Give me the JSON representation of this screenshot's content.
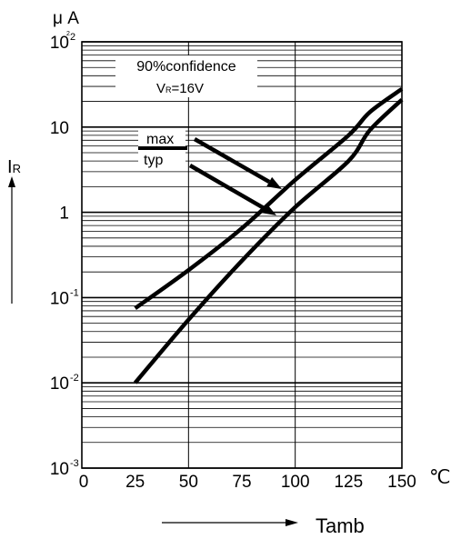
{
  "chart_data": {
    "type": "line",
    "title": "",
    "ylabel_unit": "μ A",
    "ylabel": "IR",
    "xlabel": "Tamb",
    "x_unit": "℃",
    "y_scale": "log",
    "xlim": [
      0,
      150
    ],
    "ylim": [
      0.001,
      100
    ],
    "x_ticks": [
      "0",
      "25",
      "50",
      "75",
      "100",
      "125",
      "150"
    ],
    "y_ticks": [
      {
        "value": 100,
        "base": "10",
        "exp": "2"
      },
      {
        "value": 10,
        "base": "10",
        "exp": ""
      },
      {
        "value": 1,
        "base": "1",
        "exp": ""
      },
      {
        "value": 0.1,
        "base": "10",
        "exp": "-1"
      },
      {
        "value": 0.01,
        "base": "10",
        "exp": "-2"
      },
      {
        "value": 0.001,
        "base": "10",
        "exp": "-3"
      }
    ],
    "annotation": {
      "line1": "90%confidence",
      "line2_main": "V",
      "line2_sub": "R",
      "line2_rest": "=16V"
    },
    "grid": true,
    "series": [
      {
        "name": "max",
        "x": [
          25,
          50,
          75,
          100,
          125,
          135,
          150
        ],
        "y": [
          0.075,
          0.21,
          0.65,
          2.4,
          8.0,
          15,
          28
        ]
      },
      {
        "name": "typ",
        "x": [
          25,
          50,
          75,
          100,
          125,
          135,
          150
        ],
        "y": [
          0.01,
          0.055,
          0.27,
          1.15,
          4.0,
          9.2,
          21
        ]
      }
    ]
  }
}
